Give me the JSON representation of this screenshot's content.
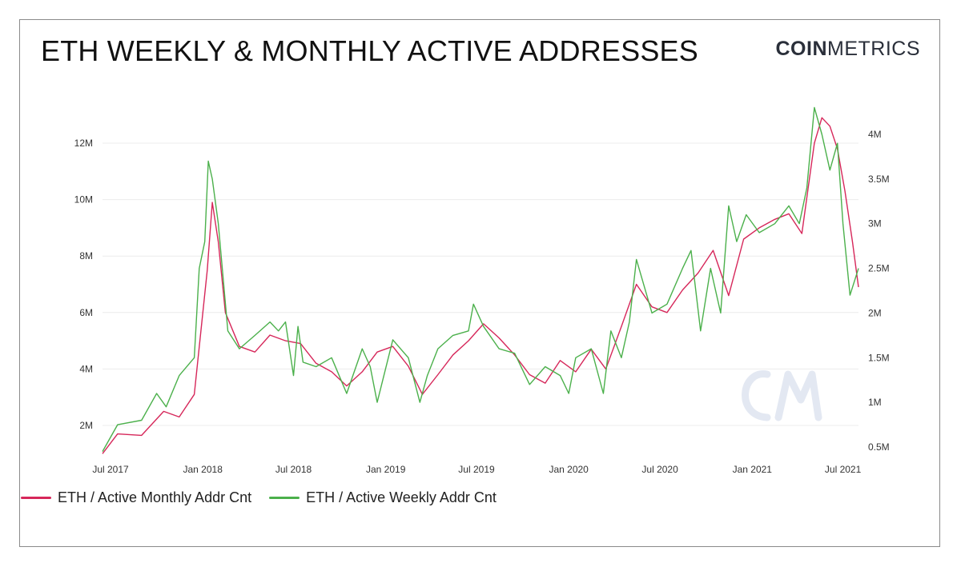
{
  "header": {
    "title": "ETH WEEKLY & MONTHLY ACTIVE ADDRESSES",
    "brand_bold": "COIN",
    "brand_light": "METRICS"
  },
  "chart_data": {
    "type": "line",
    "x_ticks": [
      "Jul 2017",
      "Jan 2018",
      "Jul 2018",
      "Jan 2019",
      "Jul 2019",
      "Jan 2020",
      "Jul 2020",
      "Jan 2021",
      "Jul 2021"
    ],
    "y_left_ticks": [
      "2M",
      "4M",
      "6M",
      "8M",
      "10M",
      "12M"
    ],
    "y_right_ticks": [
      "0.5M",
      "1M",
      "1.5M",
      "2M",
      "2.5M",
      "3M",
      "3.5M",
      "4M"
    ],
    "ylim_left": [
      1000000,
      13000000
    ],
    "ylim_right": [
      0.5,
      4.3
    ],
    "grid": true,
    "legend_position": "bottom-left",
    "series": [
      {
        "name": "ETH / Active Monthly Addr Cnt",
        "color": "#d6275a",
        "axis": "left",
        "x": [
          "2017-06-15",
          "2017-07-15",
          "2017-09-01",
          "2017-10-15",
          "2017-11-15",
          "2017-12-15",
          "2018-01-10",
          "2018-01-20",
          "2018-02-01",
          "2018-02-15",
          "2018-03-15",
          "2018-04-15",
          "2018-05-15",
          "2018-06-15",
          "2018-07-15",
          "2018-08-15",
          "2018-09-15",
          "2018-10-15",
          "2018-11-15",
          "2018-12-15",
          "2019-01-15",
          "2019-02-15",
          "2019-03-15",
          "2019-04-15",
          "2019-05-15",
          "2019-06-15",
          "2019-07-15",
          "2019-08-15",
          "2019-09-15",
          "2019-10-15",
          "2019-11-15",
          "2019-12-15",
          "2020-01-15",
          "2020-02-15",
          "2020-03-15",
          "2020-04-15",
          "2020-05-15",
          "2020-06-15",
          "2020-07-15",
          "2020-08-15",
          "2020-09-15",
          "2020-10-15",
          "2020-11-15",
          "2020-12-15",
          "2021-01-15",
          "2021-02-15",
          "2021-03-15",
          "2021-04-10",
          "2021-05-05",
          "2021-05-20",
          "2021-06-05",
          "2021-06-20",
          "2021-07-05",
          "2021-07-20",
          "2021-08-01"
        ],
        "values": [
          1000000,
          1700000,
          1650000,
          2500000,
          2300000,
          3100000,
          7500000,
          9900000,
          8500000,
          6000000,
          4800000,
          4600000,
          5200000,
          5000000,
          4900000,
          4200000,
          3900000,
          3400000,
          3900000,
          4600000,
          4800000,
          4100000,
          3100000,
          3800000,
          4500000,
          5000000,
          5600000,
          5100000,
          4500000,
          3800000,
          3500000,
          4300000,
          3900000,
          4700000,
          4000000,
          5500000,
          7000000,
          6200000,
          6000000,
          6800000,
          7400000,
          8200000,
          6600000,
          8600000,
          9000000,
          9300000,
          9500000,
          8800000,
          12000000,
          12900000,
          12600000,
          11800000,
          10300000,
          8500000,
          6900000
        ]
      },
      {
        "name": "ETH / Active Weekly Addr Cnt",
        "color": "#4bb04b",
        "axis": "right",
        "x": [
          "2017-06-15",
          "2017-07-15",
          "2017-09-01",
          "2017-10-01",
          "2017-10-20",
          "2017-11-15",
          "2017-12-15",
          "2017-12-25",
          "2018-01-05",
          "2018-01-12",
          "2018-01-20",
          "2018-02-01",
          "2018-02-20",
          "2018-03-15",
          "2018-04-15",
          "2018-05-15",
          "2018-06-01",
          "2018-06-15",
          "2018-07-01",
          "2018-07-10",
          "2018-07-20",
          "2018-08-15",
          "2018-09-15",
          "2018-10-15",
          "2018-11-15",
          "2018-12-01",
          "2018-12-15",
          "2019-01-15",
          "2019-02-15",
          "2019-03-10",
          "2019-03-25",
          "2019-04-15",
          "2019-05-15",
          "2019-06-15",
          "2019-06-25",
          "2019-07-15",
          "2019-08-15",
          "2019-09-15",
          "2019-10-15",
          "2019-11-15",
          "2019-12-15",
          "2020-01-01",
          "2020-01-15",
          "2020-02-15",
          "2020-03-10",
          "2020-03-25",
          "2020-04-15",
          "2020-05-01",
          "2020-05-15",
          "2020-06-15",
          "2020-07-15",
          "2020-08-15",
          "2020-09-01",
          "2020-09-20",
          "2020-10-10",
          "2020-10-30",
          "2020-11-15",
          "2020-12-01",
          "2020-12-20",
          "2021-01-15",
          "2021-02-15",
          "2021-03-15",
          "2021-04-05",
          "2021-04-20",
          "2021-05-05",
          "2021-05-20",
          "2021-06-05",
          "2021-06-20",
          "2021-07-01",
          "2021-07-15",
          "2021-08-01"
        ],
        "values": [
          0.45,
          0.75,
          0.8,
          1.1,
          0.95,
          1.3,
          1.5,
          2.5,
          2.8,
          3.7,
          3.5,
          3.0,
          1.8,
          1.6,
          1.75,
          1.9,
          1.8,
          1.9,
          1.3,
          1.85,
          1.45,
          1.4,
          1.5,
          1.1,
          1.6,
          1.4,
          1.0,
          1.7,
          1.5,
          1.0,
          1.3,
          1.6,
          1.75,
          1.8,
          2.1,
          1.85,
          1.6,
          1.55,
          1.2,
          1.4,
          1.3,
          1.1,
          1.5,
          1.6,
          1.1,
          1.8,
          1.5,
          1.9,
          2.6,
          2.0,
          2.1,
          2.5,
          2.7,
          1.8,
          2.5,
          2.0,
          3.2,
          2.8,
          3.1,
          2.9,
          3.0,
          3.2,
          3.0,
          3.4,
          4.3,
          4.0,
          3.6,
          3.9,
          3.0,
          2.2,
          2.5
        ]
      }
    ]
  },
  "legend": {
    "monthly_label": "ETH / Active Monthly Addr Cnt",
    "weekly_label": "ETH / Active Weekly Addr Cnt"
  },
  "watermark": "CM-logo"
}
